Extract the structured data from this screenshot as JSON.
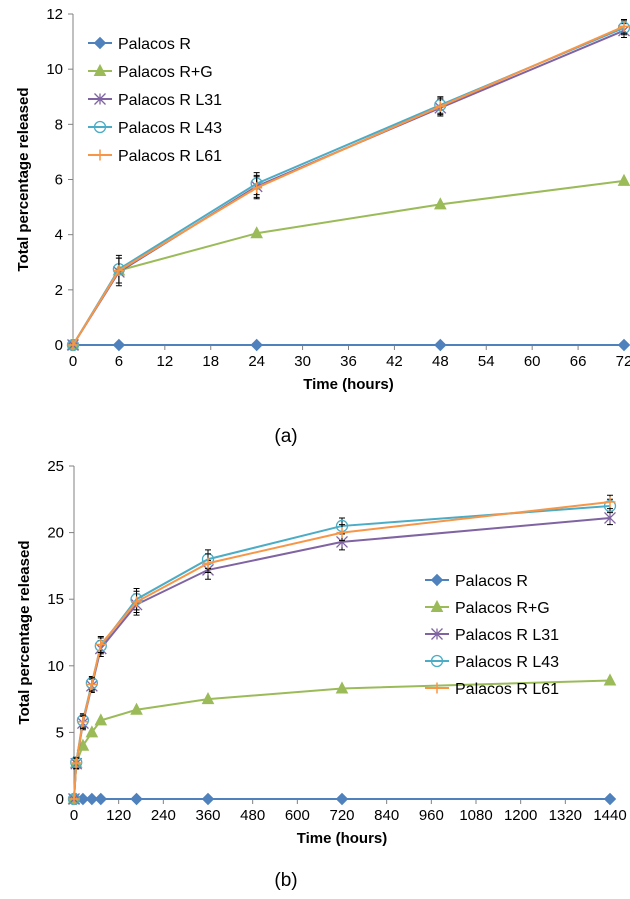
{
  "chart_data": [
    {
      "type": "line",
      "panel_label": "(a)",
      "xlabel": "Time (hours)",
      "ylabel": "Total percentage released",
      "xlim": [
        0,
        72
      ],
      "ylim": [
        0,
        12
      ],
      "x_ticks": [
        0,
        6,
        12,
        18,
        24,
        30,
        36,
        42,
        48,
        54,
        60,
        66,
        72
      ],
      "y_ticks": [
        0,
        2,
        4,
        6,
        8,
        10,
        12
      ],
      "legend_position": "top-left",
      "grid": false,
      "series": [
        {
          "name": "Palacos R",
          "color": "#4f81bd",
          "marker": "diamond",
          "x": [
            0,
            6,
            24,
            48,
            72
          ],
          "y": [
            0,
            0,
            0,
            0,
            0
          ],
          "err": [
            0,
            0,
            0,
            0,
            0
          ]
        },
        {
          "name": "Palacos R+G",
          "color": "#9bbb59",
          "marker": "triangle",
          "x": [
            0,
            6,
            24,
            48,
            72
          ],
          "y": [
            0,
            2.7,
            4.05,
            5.1,
            5.95
          ],
          "err": [
            0,
            0,
            0,
            0,
            0
          ]
        },
        {
          "name": "Palacos R L31",
          "color": "#8064a2",
          "marker": "star",
          "x": [
            0,
            6,
            24,
            48,
            72
          ],
          "y": [
            0,
            2.65,
            5.75,
            8.6,
            11.4
          ],
          "err": [
            0,
            0.5,
            0.4,
            0.3,
            0.25
          ]
        },
        {
          "name": "Palacos R L43",
          "color": "#4bacc6",
          "marker": "circle",
          "x": [
            0,
            6,
            24,
            48,
            72
          ],
          "y": [
            0,
            2.75,
            5.85,
            8.7,
            11.5
          ],
          "err": [
            0,
            0.5,
            0.4,
            0.3,
            0.25
          ]
        },
        {
          "name": "Palacos R L61",
          "color": "#f79646",
          "marker": "plus",
          "x": [
            0,
            6,
            24,
            48,
            72
          ],
          "y": [
            0,
            2.7,
            5.7,
            8.65,
            11.55
          ],
          "err": [
            0,
            0.45,
            0.4,
            0.3,
            0.25
          ]
        }
      ]
    },
    {
      "type": "line",
      "panel_label": "(b)",
      "xlabel": "Time (hours)",
      "ylabel": "Total percentage released",
      "xlim": [
        0,
        1440
      ],
      "ylim": [
        0,
        25
      ],
      "x_ticks": [
        0,
        120,
        240,
        360,
        480,
        600,
        720,
        840,
        960,
        1080,
        1200,
        1320,
        1440
      ],
      "x_tick_labels": [
        "0",
        "120",
        "240",
        "360",
        "480",
        "600",
        "720",
        "840",
        "960",
        "1080",
        "1200",
        "1320",
        "1440"
      ],
      "y_ticks": [
        0,
        5,
        10,
        15,
        20,
        25
      ],
      "legend_position": "right",
      "grid": false,
      "series": [
        {
          "name": "Palacos R",
          "color": "#4f81bd",
          "marker": "diamond",
          "x": [
            0,
            6,
            24,
            48,
            72,
            168,
            360,
            720,
            1440
          ],
          "y": [
            0,
            0,
            0,
            0,
            0,
            0,
            0,
            0,
            0
          ],
          "err": [
            0,
            0,
            0,
            0,
            0,
            0,
            0,
            0,
            0
          ]
        },
        {
          "name": "Palacos R+G",
          "color": "#9bbb59",
          "marker": "triangle",
          "x": [
            0,
            6,
            24,
            48,
            72,
            168,
            360,
            720,
            1440
          ],
          "y": [
            0,
            2.7,
            4.0,
            5.0,
            5.9,
            6.7,
            7.5,
            8.3,
            8.9
          ],
          "err": [
            0,
            0,
            0,
            0,
            0,
            0,
            0,
            0,
            0
          ]
        },
        {
          "name": "Palacos R L31",
          "color": "#8064a2",
          "marker": "star",
          "x": [
            0,
            6,
            24,
            48,
            72,
            168,
            360,
            720,
            1440
          ],
          "y": [
            0,
            2.65,
            5.7,
            8.5,
            11.3,
            14.6,
            17.2,
            19.3,
            21.1
          ],
          "err": [
            0,
            0.4,
            0.5,
            0.5,
            0.6,
            0.8,
            0.7,
            0.6,
            0.5
          ]
        },
        {
          "name": "Palacos R L43",
          "color": "#4bacc6",
          "marker": "circle",
          "x": [
            0,
            6,
            24,
            48,
            72,
            168,
            360,
            720,
            1440
          ],
          "y": [
            0,
            2.75,
            5.9,
            8.7,
            11.5,
            15.0,
            18.0,
            20.5,
            22.0
          ],
          "err": [
            0,
            0.4,
            0.5,
            0.5,
            0.6,
            0.8,
            0.7,
            0.6,
            0.5
          ]
        },
        {
          "name": "Palacos R L61",
          "color": "#f79646",
          "marker": "plus",
          "x": [
            0,
            6,
            24,
            48,
            72,
            168,
            360,
            720,
            1440
          ],
          "y": [
            0,
            2.7,
            5.8,
            8.6,
            11.6,
            14.8,
            17.7,
            20.0,
            22.3
          ],
          "err": [
            0,
            0.4,
            0.5,
            0.5,
            0.6,
            0.8,
            0.7,
            0.6,
            0.5
          ]
        }
      ]
    }
  ]
}
